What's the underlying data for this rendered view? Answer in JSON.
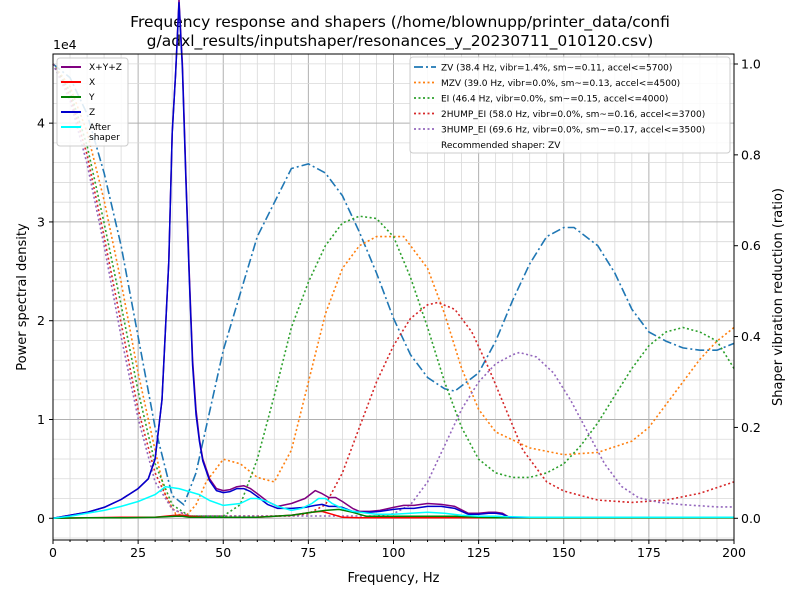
{
  "chart_data": {
    "type": "line",
    "title_lines": [
      "Frequency response and shapers (/home/blownupp/printer_data/confi",
      "g/adxl_results/inputshaper/resonances_y_20230711_010120.csv)"
    ],
    "xlabel": "Frequency, Hz",
    "ylabel": "Power spectral density",
    "y2label": "Shaper vibration reduction (ratio)",
    "y_multiplier_label": "1e4",
    "xlim": [
      0,
      200
    ],
    "ylim": [
      -0.22,
      4.7
    ],
    "y2lim": [
      -0.0478,
      1.022
    ],
    "xticks": [
      0,
      25,
      50,
      75,
      100,
      125,
      150,
      175,
      200
    ],
    "yticks": [
      0,
      1,
      2,
      3,
      4
    ],
    "y2ticks": [
      0.0,
      0.2,
      0.4,
      0.6,
      0.8,
      1.0
    ],
    "grid": true,
    "legend_left_placement": "top-left",
    "legend_right_placement": "top-right",
    "psd_series": [
      {
        "name": "X+Y+Z",
        "color": "#800080",
        "width": 1.5,
        "x": [
          0,
          5,
          10,
          15,
          20,
          25,
          28,
          30,
          32,
          34,
          35,
          36,
          37,
          38,
          39,
          40,
          41,
          42,
          43,
          44,
          46,
          48,
          50,
          52,
          54,
          56,
          58,
          60,
          63,
          66,
          70,
          74,
          77,
          79,
          81,
          83,
          85,
          88,
          90,
          93,
          96,
          100,
          103,
          106,
          110,
          114,
          118,
          122,
          125,
          128,
          130,
          132,
          134,
          140,
          150,
          160,
          170,
          180,
          190,
          200
        ],
        "y": [
          0,
          0.03,
          0.06,
          0.11,
          0.19,
          0.3,
          0.4,
          0.6,
          1.2,
          2.6,
          3.9,
          4.5,
          5.25,
          4.6,
          3.5,
          2.5,
          1.6,
          1.1,
          0.8,
          0.6,
          0.4,
          0.3,
          0.28,
          0.29,
          0.32,
          0.33,
          0.3,
          0.25,
          0.17,
          0.12,
          0.15,
          0.2,
          0.28,
          0.25,
          0.21,
          0.21,
          0.17,
          0.1,
          0.07,
          0.07,
          0.08,
          0.11,
          0.13,
          0.13,
          0.15,
          0.14,
          0.12,
          0.05,
          0.05,
          0.06,
          0.06,
          0.05,
          0.01,
          0.01,
          0.01,
          0.01,
          0.01,
          0.01,
          0.01,
          0.01
        ]
      },
      {
        "name": "X",
        "color": "#ff0000",
        "width": 1.5,
        "x": [
          0,
          10,
          20,
          30,
          36,
          38,
          40,
          45,
          50,
          60,
          70,
          76,
          79,
          82,
          85,
          90,
          100,
          200
        ],
        "y": [
          0,
          0.005,
          0.01,
          0.01,
          0.03,
          0.03,
          0.02,
          0.01,
          0.01,
          0.01,
          0.03,
          0.06,
          0.07,
          0.04,
          0.01,
          0.005,
          0.005,
          0.005
        ]
      },
      {
        "name": "Y",
        "color": "#008000",
        "width": 1.5,
        "x": [
          0,
          10,
          20,
          30,
          36,
          38,
          40,
          45,
          50,
          60,
          70,
          76,
          80,
          84,
          88,
          92,
          100,
          110,
          118,
          125,
          130,
          140,
          200
        ],
        "y": [
          0,
          0.005,
          0.005,
          0.01,
          0.02,
          0.02,
          0.01,
          0.01,
          0.01,
          0.01,
          0.03,
          0.06,
          0.08,
          0.09,
          0.06,
          0.02,
          0.02,
          0.02,
          0.02,
          0.01,
          0.005,
          0.005,
          0.005
        ]
      },
      {
        "name": "Z",
        "color": "#0000cd",
        "width": 1.5,
        "x": [
          0,
          5,
          10,
          15,
          20,
          25,
          28,
          30,
          32,
          34,
          35,
          36,
          37,
          38,
          39,
          40,
          41,
          42,
          43,
          44,
          46,
          48,
          50,
          52,
          54,
          56,
          58,
          60,
          63,
          66,
          70,
          74,
          77,
          79,
          81,
          83,
          85,
          88,
          90,
          93,
          96,
          100,
          103,
          106,
          110,
          114,
          118,
          122,
          125,
          128,
          130,
          132,
          134,
          140,
          150,
          160,
          170,
          180,
          190,
          200
        ],
        "y": [
          0,
          0.03,
          0.06,
          0.11,
          0.19,
          0.3,
          0.4,
          0.6,
          1.2,
          2.6,
          3.9,
          4.5,
          5.22,
          4.55,
          3.45,
          2.45,
          1.55,
          1.05,
          0.78,
          0.58,
          0.38,
          0.28,
          0.26,
          0.27,
          0.3,
          0.3,
          0.27,
          0.22,
          0.14,
          0.1,
          0.1,
          0.11,
          0.13,
          0.14,
          0.12,
          0.12,
          0.11,
          0.07,
          0.06,
          0.06,
          0.07,
          0.09,
          0.1,
          0.1,
          0.12,
          0.12,
          0.1,
          0.04,
          0.04,
          0.05,
          0.05,
          0.04,
          0.01,
          0.01,
          0.01,
          0.01,
          0.01,
          0.01,
          0.01,
          0.01
        ]
      },
      {
        "name": "After\nshaper",
        "color": "#00ffff",
        "width": 1.5,
        "x": [
          0,
          5,
          10,
          15,
          20,
          25,
          30,
          33,
          35,
          37,
          40,
          43,
          46,
          50,
          55,
          58,
          60,
          63,
          66,
          70,
          73,
          76,
          78,
          80,
          82,
          85,
          88,
          90,
          95,
          100,
          105,
          110,
          115,
          120,
          125,
          130,
          140,
          150,
          170,
          200
        ],
        "y": [
          0,
          0.02,
          0.05,
          0.08,
          0.12,
          0.17,
          0.24,
          0.32,
          0.31,
          0.3,
          0.27,
          0.24,
          0.18,
          0.13,
          0.15,
          0.2,
          0.2,
          0.17,
          0.12,
          0.08,
          0.1,
          0.15,
          0.2,
          0.2,
          0.15,
          0.1,
          0.07,
          0.06,
          0.04,
          0.04,
          0.05,
          0.06,
          0.05,
          0.03,
          0.02,
          0.02,
          0.01,
          0.01,
          0.01,
          0.01
        ]
      }
    ],
    "shaper_series": [
      {
        "name": "ZV (38.4 Hz, vibr=1.4%, sm~=0.11, accel<=5700)",
        "color": "#1f77b4",
        "dash": "dashdot",
        "x": [
          0,
          5,
          10,
          15,
          20,
          25,
          30,
          35,
          38.4,
          42,
          50,
          60,
          70,
          75,
          80,
          85,
          90,
          95,
          100,
          105,
          110,
          115,
          118,
          125,
          130,
          135,
          140,
          145,
          150,
          153,
          160,
          165,
          170,
          175,
          180,
          185,
          190,
          195,
          200
        ],
        "y": [
          1.0,
          0.97,
          0.89,
          0.76,
          0.6,
          0.4,
          0.2,
          0.05,
          0.03,
          0.1,
          0.37,
          0.62,
          0.77,
          0.78,
          0.76,
          0.71,
          0.63,
          0.54,
          0.44,
          0.36,
          0.31,
          0.285,
          0.28,
          0.32,
          0.39,
          0.48,
          0.56,
          0.62,
          0.64,
          0.64,
          0.6,
          0.54,
          0.46,
          0.41,
          0.39,
          0.375,
          0.37,
          0.37,
          0.385
        ]
      },
      {
        "name": "MZV (39.0 Hz, vibr=0.0%, sm~=0.13, accel<=4500)",
        "color": "#ff7f0e",
        "dash": "dotted",
        "x": [
          0,
          5,
          10,
          15,
          20,
          25,
          30,
          33,
          36,
          39,
          42,
          45,
          50,
          55,
          60,
          65,
          70,
          75,
          80,
          85,
          90,
          95,
          100,
          103,
          110,
          115,
          120,
          125,
          130,
          140,
          150,
          160,
          170,
          175,
          180,
          185,
          190,
          195,
          200
        ],
        "y": [
          1.0,
          0.95,
          0.85,
          0.7,
          0.52,
          0.32,
          0.15,
          0.05,
          0.01,
          0.005,
          0.03,
          0.08,
          0.13,
          0.12,
          0.09,
          0.08,
          0.15,
          0.3,
          0.45,
          0.55,
          0.6,
          0.62,
          0.62,
          0.62,
          0.55,
          0.45,
          0.33,
          0.24,
          0.19,
          0.155,
          0.14,
          0.145,
          0.17,
          0.2,
          0.25,
          0.3,
          0.35,
          0.39,
          0.42
        ]
      },
      {
        "name": "EI (46.4 Hz, vibr=0.0%, sm~=0.15, accel<=4000)",
        "color": "#2ca02c",
        "dash": "dotted",
        "x": [
          0,
          5,
          10,
          15,
          20,
          25,
          30,
          35,
          40,
          45,
          50,
          55,
          60,
          65,
          70,
          75,
          80,
          85,
          90,
          95,
          100,
          105,
          110,
          115,
          120,
          125,
          130,
          135,
          140,
          145,
          150,
          155,
          160,
          165,
          170,
          175,
          180,
          185,
          190,
          195,
          200
        ],
        "y": [
          1.0,
          0.94,
          0.82,
          0.65,
          0.47,
          0.28,
          0.12,
          0.03,
          0.005,
          0.005,
          0.005,
          0.03,
          0.13,
          0.27,
          0.42,
          0.52,
          0.6,
          0.65,
          0.665,
          0.66,
          0.62,
          0.53,
          0.42,
          0.3,
          0.2,
          0.13,
          0.1,
          0.09,
          0.09,
          0.1,
          0.12,
          0.16,
          0.21,
          0.27,
          0.33,
          0.38,
          0.41,
          0.42,
          0.41,
          0.39,
          0.33
        ]
      },
      {
        "name": "2HUMP_EI (58.0 Hz, vibr=0.0%, sm~=0.16, accel<=3700)",
        "color": "#d62728",
        "dash": "dotted",
        "x": [
          0,
          5,
          10,
          15,
          20,
          25,
          30,
          35,
          40,
          45,
          50,
          55,
          60,
          65,
          70,
          75,
          80,
          85,
          90,
          95,
          100,
          105,
          110,
          113,
          118,
          123,
          128,
          133,
          138,
          145,
          150,
          160,
          170,
          180,
          190,
          200
        ],
        "y": [
          1.0,
          0.93,
          0.8,
          0.62,
          0.43,
          0.24,
          0.1,
          0.02,
          0.005,
          0.005,
          0.005,
          0.005,
          0.005,
          0.005,
          0.005,
          0.01,
          0.03,
          0.1,
          0.2,
          0.3,
          0.38,
          0.44,
          0.47,
          0.475,
          0.46,
          0.41,
          0.33,
          0.24,
          0.15,
          0.08,
          0.06,
          0.04,
          0.035,
          0.04,
          0.055,
          0.08
        ]
      },
      {
        "name": "3HUMP_EI (69.6 Hz, vibr=0.0%, sm~=0.17, accel<=3500)",
        "color": "#9467bd",
        "dash": "dotted",
        "x": [
          0,
          5,
          10,
          15,
          20,
          25,
          30,
          35,
          40,
          45,
          50,
          55,
          60,
          65,
          70,
          75,
          80,
          85,
          90,
          95,
          100,
          105,
          110,
          115,
          120,
          125,
          130,
          135,
          137,
          142,
          147,
          152,
          157,
          162,
          167,
          172,
          178,
          185,
          195,
          200
        ],
        "y": [
          1.0,
          0.92,
          0.78,
          0.6,
          0.4,
          0.22,
          0.08,
          0.02,
          0.005,
          0.005,
          0.005,
          0.005,
          0.005,
          0.005,
          0.005,
          0.005,
          0.005,
          0.005,
          0.005,
          0.005,
          0.01,
          0.03,
          0.08,
          0.16,
          0.24,
          0.3,
          0.34,
          0.36,
          0.365,
          0.355,
          0.32,
          0.26,
          0.19,
          0.12,
          0.07,
          0.045,
          0.035,
          0.03,
          0.025,
          0.025
        ]
      }
    ],
    "recommended_note": "Recommended shaper: ZV"
  }
}
